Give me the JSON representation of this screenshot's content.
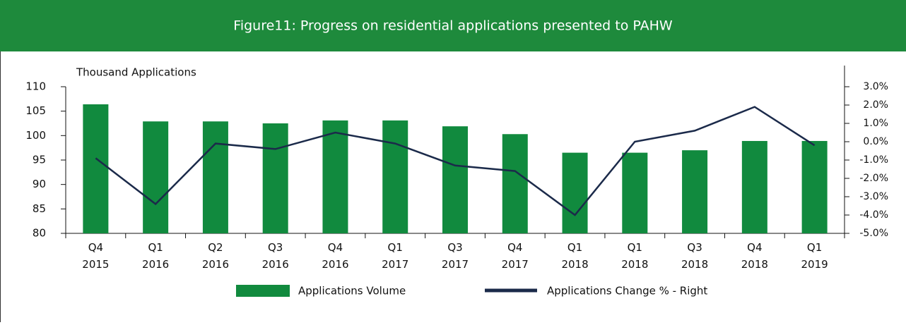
{
  "chart_data": {
    "type": "bar_line",
    "title": "Figure11: Progress on residential applications presented to PAHW",
    "y_axis_label": "Thousand Applications",
    "categories": [
      "Q4 2015",
      "Q1 2016",
      "Q2 2016",
      "Q3 2016",
      "Q4 2016",
      "Q1 2017",
      "Q3 2017",
      "Q4 2017",
      "Q1 2018",
      "Q1 2018",
      "Q3 2018",
      "Q4 2018",
      "Q1 2019"
    ],
    "series": [
      {
        "name": "Applications Volume",
        "color": "#118a3e",
        "kind": "bar",
        "values": [
          106.4,
          102.9,
          102.9,
          102.5,
          103.1,
          103.1,
          101.9,
          100.3,
          96.5,
          96.5,
          97.0,
          98.9,
          98.9
        ]
      },
      {
        "name": "Applications Change % - Right",
        "color": "#1b2a4a",
        "kind": "line",
        "axis": "y2",
        "values": [
          -0.9,
          -3.4,
          -0.1,
          -0.4,
          0.5,
          -0.1,
          -1.3,
          -1.6,
          -4.0,
          0.0,
          0.6,
          1.9,
          -0.2
        ]
      }
    ],
    "ylim": [
      80,
      110
    ],
    "yticks": [
      80,
      85,
      90,
      95,
      100,
      105,
      110
    ],
    "y2lim": [
      -5,
      3
    ],
    "y2ticks": [
      {
        "value": -5,
        "label": "-5.0%"
      },
      {
        "value": -4,
        "label": "-4.0%"
      },
      {
        "value": -3,
        "label": "-3.0%"
      },
      {
        "value": -2,
        "label": "-2.0%"
      },
      {
        "value": -1,
        "label": "-1.0%"
      },
      {
        "value": 0,
        "label": "0.0%"
      },
      {
        "value": 1,
        "label": "1.0%"
      },
      {
        "value": 2,
        "label": "2.0%"
      },
      {
        "value": 3,
        "label": "3.0%"
      }
    ],
    "header_color": "#1e8a3c"
  }
}
